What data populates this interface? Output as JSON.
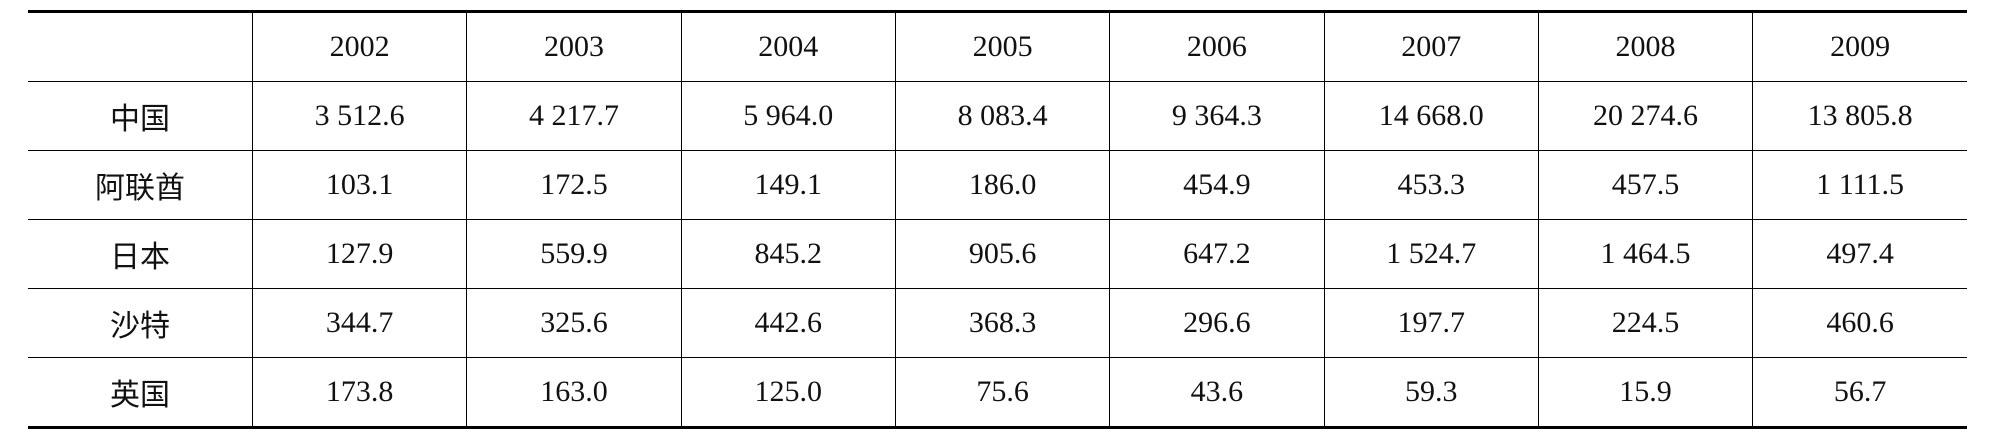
{
  "table": {
    "header": [
      "2002",
      "2003",
      "2004",
      "2005",
      "2006",
      "2007",
      "2008",
      "2009"
    ],
    "rows": [
      [
        "中国",
        "3 512.6",
        "4 217.7",
        "5 964.0",
        "8 083.4",
        "9 364.3",
        "14 668.0",
        "20 274.6",
        "13 805.8"
      ],
      [
        "阿联酋",
        "103.1",
        "172.5",
        "149.1",
        "186.0",
        "454.9",
        "453.3",
        "457.5",
        "1 111.5"
      ],
      [
        "日本",
        "127.9",
        "559.9",
        "845.2",
        "905.6",
        "647.2",
        "1 524.7",
        "1 464.5",
        "497.4"
      ],
      [
        "沙特",
        "344.7",
        "325.6",
        "442.6",
        "368.3",
        "296.6",
        "197.7",
        "224.5",
        "460.6"
      ],
      [
        "英国",
        "173.8",
        "163.0",
        "125.0",
        "75.6",
        "43.6",
        "59.3",
        "15.9",
        "56.7"
      ]
    ]
  }
}
